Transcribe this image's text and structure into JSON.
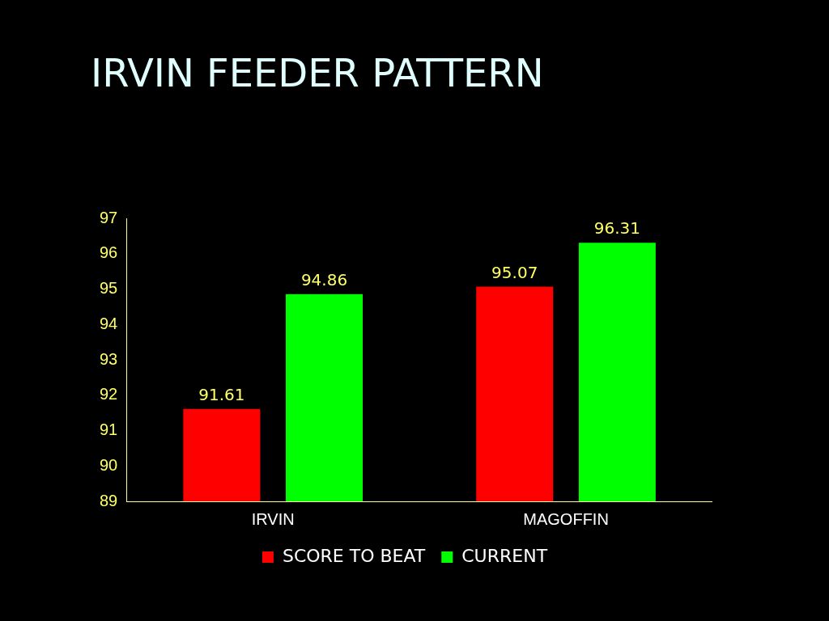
{
  "chart_data": {
    "type": "bar",
    "title": "IRVIN FEEDER PATTERN",
    "categories": [
      "IRVIN",
      "MAGOFFIN"
    ],
    "series": [
      {
        "name": "SCORE TO BEAT",
        "color": "#ff0000",
        "values": [
          91.61,
          95.07
        ]
      },
      {
        "name": "CURRENT",
        "color": "#00ff00",
        "values": [
          94.86,
          96.31
        ]
      }
    ],
    "ylim": [
      89,
      97
    ],
    "yticks": [
      89,
      90,
      91,
      92,
      93,
      94,
      95,
      96,
      97
    ],
    "grid": false,
    "legend": "bottom",
    "data_labels": true
  }
}
